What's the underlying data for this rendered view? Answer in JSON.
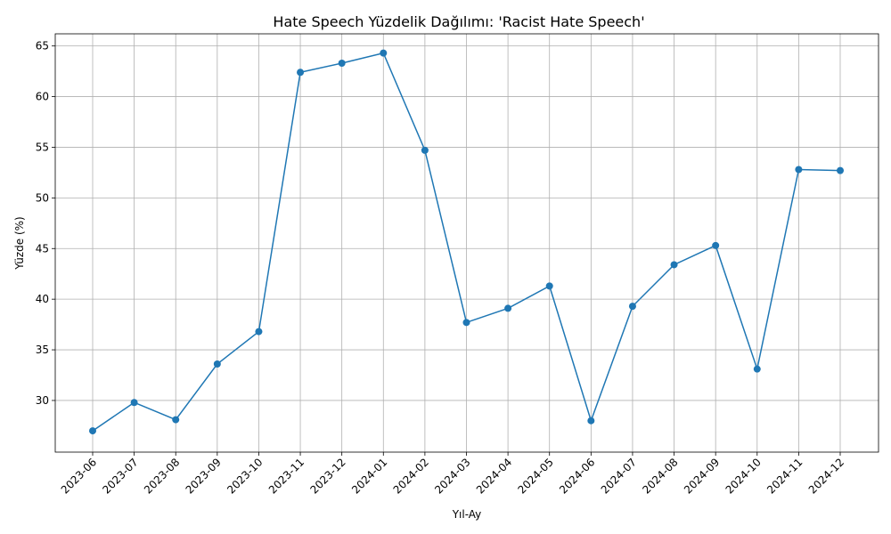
{
  "chart_data": {
    "type": "line",
    "title": "Hate Speech Yüzdelik Dağılımı: 'Racist Hate Speech'",
    "xlabel": "Yıl-Ay",
    "ylabel": "Yüzde (%)",
    "categories": [
      "2023-06",
      "2023-07",
      "2023-08",
      "2023-09",
      "2023-10",
      "2023-11",
      "2023-12",
      "2024-01",
      "2024-02",
      "2024-03",
      "2024-04",
      "2024-05",
      "2024-06",
      "2024-07",
      "2024-08",
      "2024-09",
      "2024-10",
      "2024-11",
      "2024-12"
    ],
    "series": [
      {
        "values": [
          27.0,
          29.8,
          28.1,
          33.6,
          36.8,
          62.4,
          63.3,
          64.3,
          54.7,
          37.7,
          39.1,
          41.3,
          28.0,
          39.3,
          43.4,
          45.3,
          33.1,
          52.8,
          52.7
        ],
        "color": "#1f77b4"
      }
    ],
    "ylim": [
      24.9,
      66.2
    ],
    "yticks": [
      30,
      35,
      40,
      45,
      50,
      55,
      60,
      65
    ],
    "grid": true,
    "legend": "none"
  }
}
